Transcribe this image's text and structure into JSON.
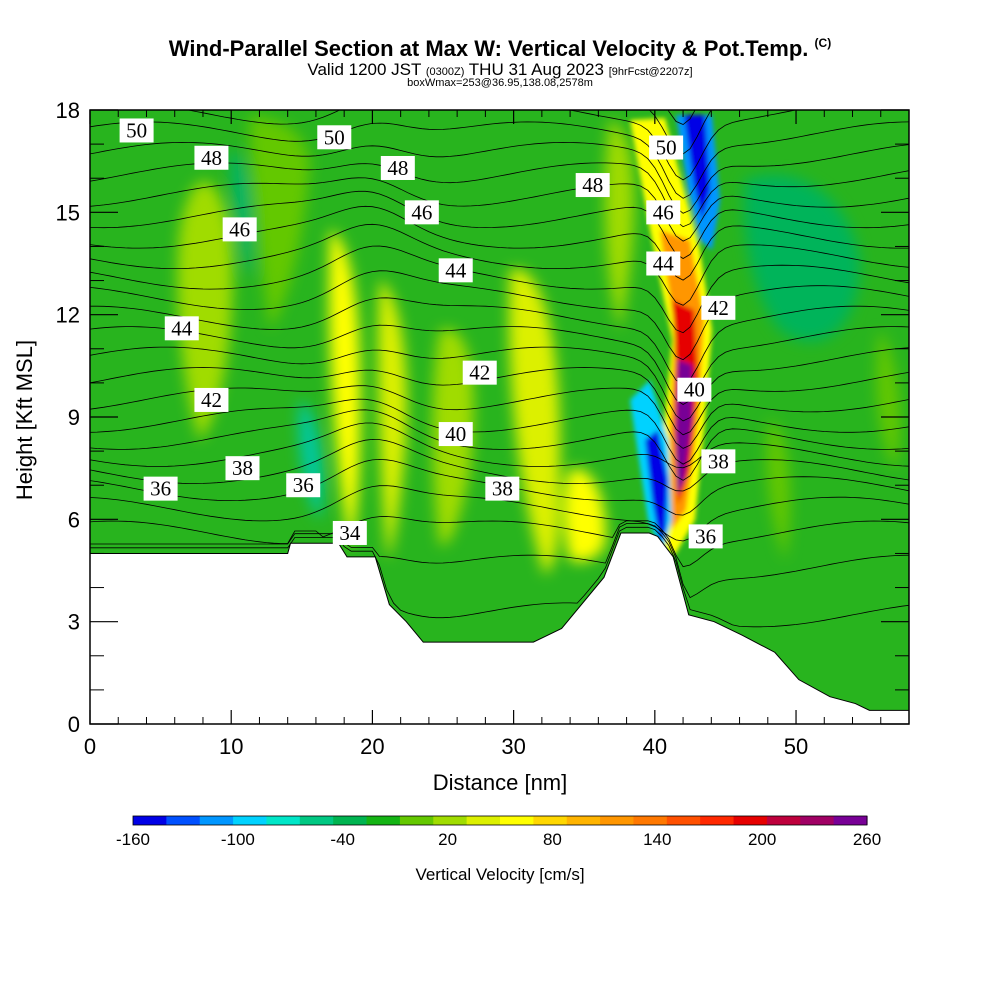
{
  "header": {
    "title_main": "Wind-Parallel Section at Max W: Vertical Velocity & Pot.Temp.",
    "title_suffix": "(C)",
    "subtitle_a": "Valid 1200 JST",
    "subtitle_b": "(0300Z)",
    "subtitle_c": "THU 31 Aug 2023",
    "subtitle_d": "[9hrFcst@2207z]",
    "subtitle2": "boxWmax=253@36.95,138.08,2578m"
  },
  "chart_data": {
    "type": "heatmap",
    "title": "Wind-Parallel Section at Max W: Vertical Velocity & Pot.Temp.",
    "xlabel": "Distance [nm]",
    "ylabel": "Height [Kft MSL]",
    "xlim": [
      0,
      58
    ],
    "ylim": [
      0,
      18
    ],
    "xticks": [
      0,
      10,
      20,
      30,
      40,
      50
    ],
    "yticks": [
      0,
      3,
      6,
      9,
      12,
      15,
      18
    ],
    "colorbar": {
      "label": "Vertical Velocity [cm/s]",
      "tick_labels": [
        "-160",
        "-100",
        "-40",
        "20",
        "80",
        "140",
        "200",
        "260"
      ],
      "tick_values": [
        -160,
        -100,
        -40,
        20,
        80,
        140,
        200,
        260
      ],
      "colors": [
        "#0000e6",
        "#0050ff",
        "#0096ff",
        "#00d2ff",
        "#00e6c8",
        "#00c882",
        "#00b450",
        "#14b414",
        "#64c800",
        "#a0dc00",
        "#dcf000",
        "#ffff00",
        "#ffd700",
        "#ffb400",
        "#ff9600",
        "#ff7800",
        "#ff5000",
        "#ff2800",
        "#e60000",
        "#be003c",
        "#a00064",
        "#780096"
      ]
    },
    "theta_contour_labels": [
      {
        "text": "50",
        "x": 3.3,
        "y": 17.4
      },
      {
        "text": "48",
        "x": 8.6,
        "y": 16.6
      },
      {
        "text": "46",
        "x": 10.6,
        "y": 14.5
      },
      {
        "text": "44",
        "x": 6.5,
        "y": 11.6
      },
      {
        "text": "42",
        "x": 8.6,
        "y": 9.5
      },
      {
        "text": "38",
        "x": 10.8,
        "y": 7.5
      },
      {
        "text": "36",
        "x": 5.0,
        "y": 6.9
      },
      {
        "text": "36",
        "x": 15.1,
        "y": 7.0
      },
      {
        "text": "34",
        "x": 18.4,
        "y": 5.6
      },
      {
        "text": "50",
        "x": 17.3,
        "y": 17.2
      },
      {
        "text": "48",
        "x": 21.8,
        "y": 16.3
      },
      {
        "text": "46",
        "x": 23.5,
        "y": 15.0
      },
      {
        "text": "44",
        "x": 25.9,
        "y": 13.3
      },
      {
        "text": "42",
        "x": 27.6,
        "y": 10.3
      },
      {
        "text": "40",
        "x": 25.9,
        "y": 8.5
      },
      {
        "text": "38",
        "x": 29.2,
        "y": 6.9
      },
      {
        "text": "48",
        "x": 35.6,
        "y": 15.8
      },
      {
        "text": "50",
        "x": 40.8,
        "y": 16.9
      },
      {
        "text": "46",
        "x": 40.6,
        "y": 15.0
      },
      {
        "text": "44",
        "x": 40.6,
        "y": 13.5
      },
      {
        "text": "42",
        "x": 44.5,
        "y": 12.2
      },
      {
        "text": "40",
        "x": 42.8,
        "y": 9.8
      },
      {
        "text": "38",
        "x": 44.5,
        "y": 7.7
      },
      {
        "text": "36",
        "x": 43.6,
        "y": 5.5
      }
    ],
    "terrain_kft": [
      [
        0,
        5.0
      ],
      [
        14,
        5.0
      ],
      [
        14.2,
        5.3
      ],
      [
        17.6,
        5.3
      ],
      [
        18.2,
        4.9
      ],
      [
        20.2,
        4.9
      ],
      [
        21.2,
        3.5
      ],
      [
        22.4,
        3.0
      ],
      [
        23.6,
        2.4
      ],
      [
        31.4,
        2.4
      ],
      [
        33.4,
        2.8
      ],
      [
        36.4,
        4.3
      ],
      [
        37.6,
        5.6
      ],
      [
        39.6,
        5.6
      ],
      [
        40.2,
        5.5
      ],
      [
        41.3,
        4.9
      ],
      [
        42.4,
        3.2
      ],
      [
        44.2,
        3.0
      ],
      [
        46.2,
        2.6
      ],
      [
        48.5,
        2.1
      ],
      [
        50.2,
        1.3
      ],
      [
        52.4,
        0.8
      ],
      [
        54.2,
        0.6
      ],
      [
        55.2,
        0.4
      ],
      [
        58,
        0.4
      ]
    ]
  }
}
